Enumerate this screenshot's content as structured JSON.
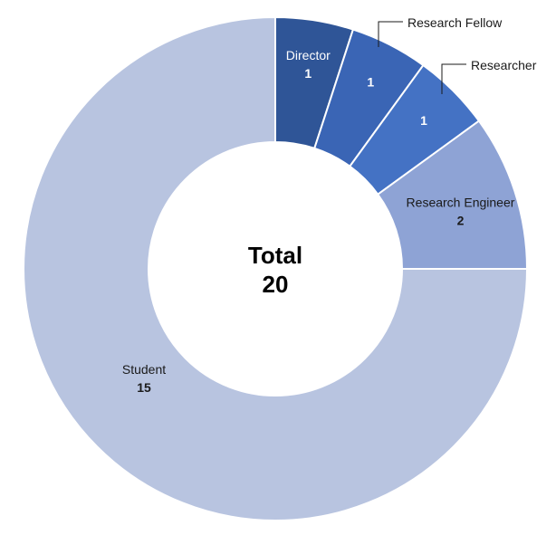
{
  "chart_data": {
    "type": "pie",
    "variant": "donut",
    "categories": [
      "Director",
      "Research Fellow",
      "Researcher",
      "Research Engineer",
      "Student"
    ],
    "values": [
      1,
      1,
      1,
      2,
      15
    ],
    "colors": [
      "#2f5597",
      "#3a65b5",
      "#4472c4",
      "#8ea3d5",
      "#b8c4e0"
    ],
    "center_label": "Total",
    "center_value": "20",
    "start_angle": "12 o'clock",
    "direction": "clockwise",
    "title": "",
    "legend": "none"
  }
}
